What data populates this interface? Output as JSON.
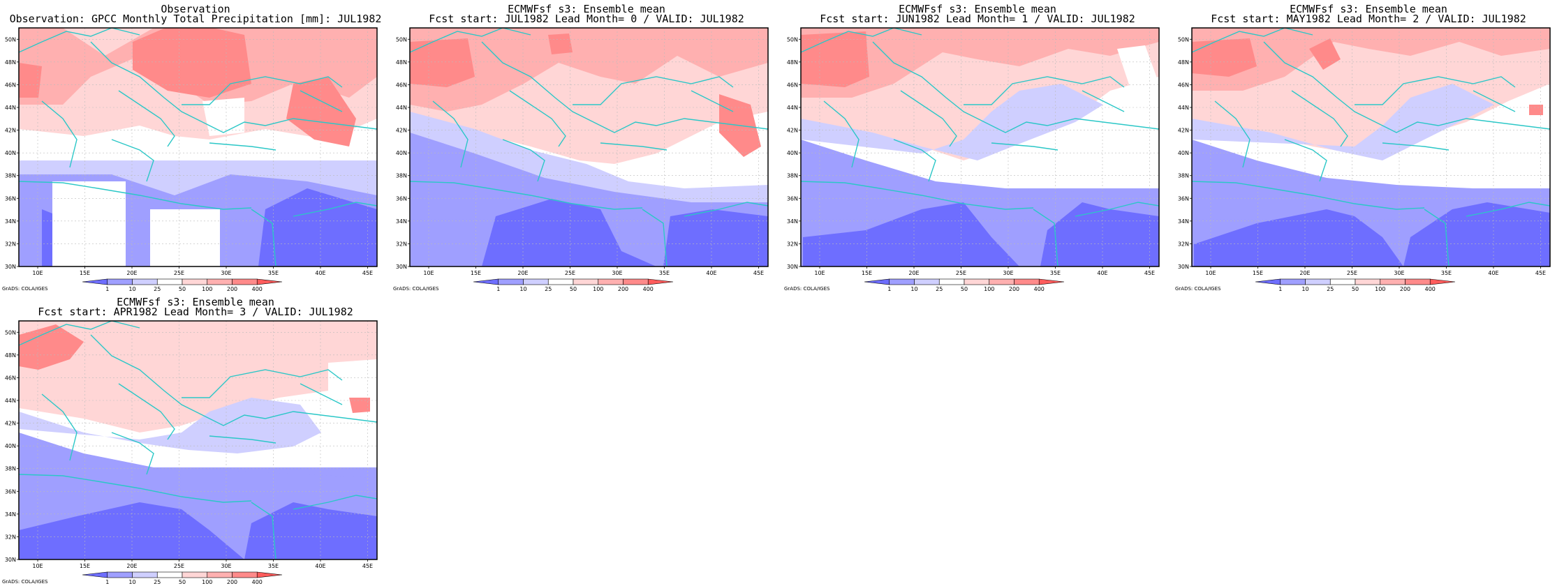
{
  "chart_data": [
    {
      "type": "filled-contour-map",
      "title": "Observation",
      "subtitle": "Observation: GPCC Monthly Total Precipitation [mm]: JUL1982",
      "lon_range": [
        8,
        46
      ],
      "lat_range": [
        30,
        51
      ],
      "x_ticks": [
        "10E",
        "15E",
        "20E",
        "25E",
        "30E",
        "35E",
        "40E",
        "45E"
      ],
      "y_ticks": [
        "30N",
        "32N",
        "34N",
        "36N",
        "38N",
        "40N",
        "42N",
        "44N",
        "46N",
        "48N",
        "50N"
      ],
      "levels": [
        1,
        10,
        25,
        50,
        100,
        200,
        400
      ],
      "credit": "GrADS: COLA/IGES"
    },
    {
      "type": "filled-contour-map",
      "title": "ECMWFsf s3: Ensemble mean",
      "subtitle": "Fcst start: JUL1982  Lead Month= 0 / VALID: JUL1982",
      "lon_range": [
        8,
        46
      ],
      "lat_range": [
        30,
        51
      ],
      "x_ticks": [
        "10E",
        "15E",
        "20E",
        "25E",
        "30E",
        "35E",
        "40E",
        "45E"
      ],
      "y_ticks": [
        "30N",
        "32N",
        "34N",
        "36N",
        "38N",
        "40N",
        "42N",
        "44N",
        "46N",
        "48N",
        "50N"
      ],
      "levels": [
        1,
        10,
        25,
        50,
        100,
        200,
        400
      ],
      "credit": "GrADS: COLA/IGES"
    },
    {
      "type": "filled-contour-map",
      "title": "ECMWFsf s3: Ensemble mean",
      "subtitle": "Fcst start: JUN1982  Lead Month= 1 / VALID: JUL1982",
      "lon_range": [
        8,
        46
      ],
      "lat_range": [
        30,
        51
      ],
      "x_ticks": [
        "10E",
        "15E",
        "20E",
        "25E",
        "30E",
        "35E",
        "40E",
        "45E"
      ],
      "y_ticks": [
        "30N",
        "32N",
        "34N",
        "36N",
        "38N",
        "40N",
        "42N",
        "44N",
        "46N",
        "48N",
        "50N"
      ],
      "levels": [
        1,
        10,
        25,
        50,
        100,
        200,
        400
      ],
      "credit": "GrADS: COLA/IGES"
    },
    {
      "type": "filled-contour-map",
      "title": "ECMWFsf s3: Ensemble mean",
      "subtitle": "Fcst start: MAY1982  Lead Month= 2 / VALID: JUL1982",
      "lon_range": [
        8,
        46
      ],
      "lat_range": [
        30,
        51
      ],
      "x_ticks": [
        "10E",
        "15E",
        "20E",
        "25E",
        "30E",
        "35E",
        "40E",
        "45E"
      ],
      "y_ticks": [
        "30N",
        "32N",
        "34N",
        "36N",
        "38N",
        "40N",
        "42N",
        "44N",
        "46N",
        "48N",
        "50N"
      ],
      "levels": [
        1,
        10,
        25,
        50,
        100,
        200,
        400
      ],
      "credit": "GrADS: COLA/IGES"
    },
    {
      "type": "filled-contour-map",
      "title": "ECMWFsf s3: Ensemble mean",
      "subtitle": "Fcst start: APR1982  Lead Month= 3 / VALID: JUL1982",
      "lon_range": [
        8,
        46
      ],
      "lat_range": [
        30,
        51
      ],
      "x_ticks": [
        "10E",
        "15E",
        "20E",
        "25E",
        "30E",
        "35E",
        "40E",
        "45E"
      ],
      "y_ticks": [
        "30N",
        "32N",
        "34N",
        "36N",
        "38N",
        "40N",
        "42N",
        "44N",
        "46N",
        "48N",
        "50N"
      ],
      "levels": [
        1,
        10,
        25,
        50,
        100,
        200,
        400
      ],
      "credit": "GrADS: COLA/IGES"
    }
  ],
  "colorbar_colors": [
    "#6e6eff",
    "#9f9fff",
    "#cfcfff",
    "#ffffff",
    "#ffd6d6",
    "#ffb0b0",
    "#ff8a8a",
    "#ff5c5c"
  ],
  "colors": {
    "frame": "#000000",
    "coast": "#2bc7c7",
    "grid": "#bbbbbb"
  }
}
